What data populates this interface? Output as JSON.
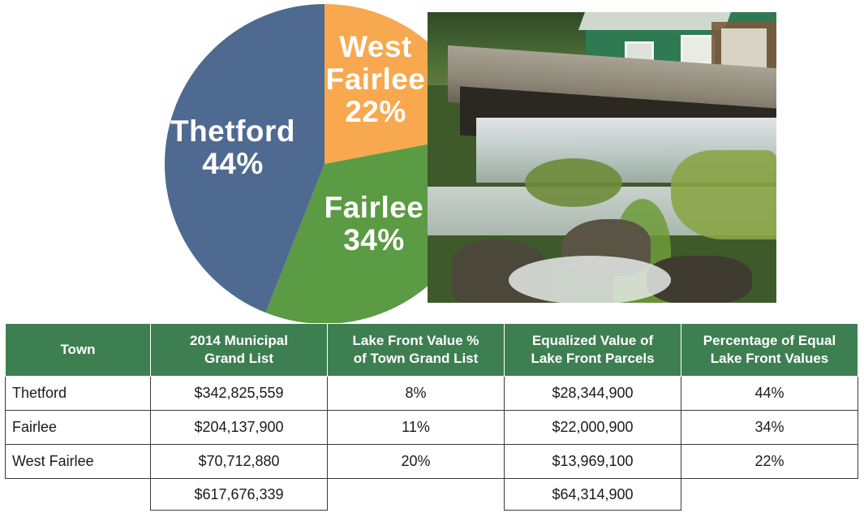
{
  "chart_data": {
    "type": "pie",
    "title": "",
    "slices": [
      {
        "label": "West Fairlee",
        "label_lines": [
          "West",
          "Fairlee"
        ],
        "value": 22,
        "display": "22%",
        "color": "#f8a84e",
        "text_color": "#ffffff"
      },
      {
        "label": "Fairlee",
        "label_lines": [
          "Fairlee"
        ],
        "value": 34,
        "display": "34%",
        "color": "#5b9b43",
        "text_color": "#ffffff"
      },
      {
        "label": "Thetford",
        "label_lines": [
          "Thetford"
        ],
        "value": 44,
        "display": "44%",
        "color": "#4f6a90",
        "text_color": "#ffffff"
      }
    ]
  },
  "photo": {
    "icon": "waterfall-dam-photo"
  },
  "table": {
    "headers": [
      {
        "lines": [
          "Town"
        ]
      },
      {
        "lines": [
          "2014 Municipal",
          "Grand List"
        ]
      },
      {
        "lines": [
          "Lake Front Value %",
          "of Town Grand List"
        ]
      },
      {
        "lines": [
          "Equalized Value of",
          "Lake Front Parcels"
        ]
      },
      {
        "lines": [
          "Percentage of Equal",
          "Lake Front Values"
        ]
      }
    ],
    "rows": [
      [
        "Thetford",
        "$342,825,559",
        "8%",
        "$28,344,900",
        "44%"
      ],
      [
        "Fairlee",
        "$204,137,900",
        "11%",
        "$22,000,900",
        "34%"
      ],
      [
        "West Fairlee",
        "$70,712,880",
        "20%",
        "$13,969,100",
        "22%"
      ]
    ],
    "totals": {
      "grand_list": "$617,676,339",
      "equalized_value": "$64,314,900"
    }
  },
  "colors": {
    "header_bg": "#3e7f52",
    "header_text": "#ffffff",
    "border": "#3a3a3a"
  }
}
